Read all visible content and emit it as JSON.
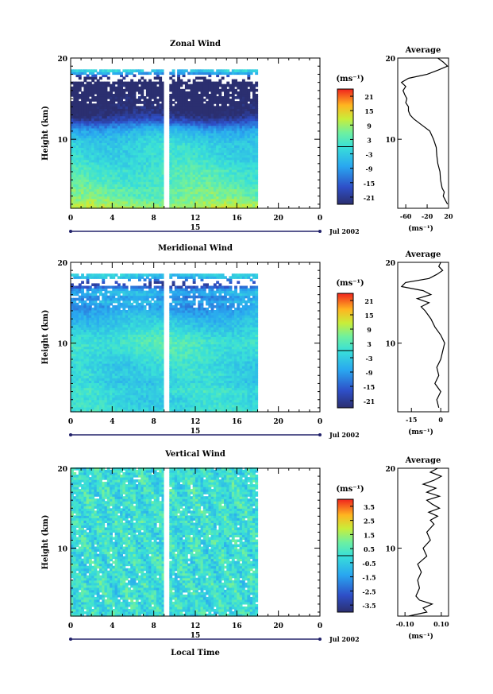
{
  "chart_data": [
    {
      "type": "heatmap",
      "title": "Zonal Wind",
      "ylabel": "Height (km)",
      "xlabel": "",
      "x_ticks": [
        "0",
        "4",
        "8",
        "12",
        "16",
        "20",
        "0"
      ],
      "y_ticks": [
        "10",
        "20"
      ],
      "xlim": [
        0,
        24
      ],
      "ylim": [
        1.5,
        20
      ],
      "day_label": "15",
      "date_label": "Jul 2002",
      "colorbar_unit": "(ms⁻¹)",
      "colorbar_ticks": [
        "21",
        "15",
        "9",
        "3",
        "-3",
        "-9",
        "-15",
        "-21"
      ],
      "colorbar_range": [
        -24,
        24
      ],
      "data_coverage_hours": [
        0,
        17.8
      ],
      "data_gap_hour": 9.1,
      "average_profile": {
        "title": "Average",
        "xlabel": "(ms⁻¹)",
        "x_ticks": [
          "-60",
          "-20",
          "20"
        ],
        "xlim": [
          -75,
          20
        ],
        "height": [
          2,
          2.5,
          3,
          3.5,
          4,
          5,
          6,
          7,
          8,
          9,
          10,
          11,
          11.5,
          12,
          12.5,
          13,
          13.5,
          14,
          14.5,
          15,
          15.5,
          16,
          16.5,
          17,
          17.5,
          18,
          18.5,
          19,
          19.5,
          20
        ],
        "values": [
          18,
          14,
          10,
          12,
          8,
          5,
          4,
          0,
          -2,
          -3,
          -8,
          -15,
          -25,
          -35,
          -45,
          -52,
          -55,
          -55,
          -60,
          -58,
          -62,
          -65,
          -60,
          -68,
          -55,
          -20,
          0,
          18,
          10,
          0
        ]
      }
    },
    {
      "type": "heatmap",
      "title": "Meridional Wind",
      "ylabel": "Height (km)",
      "xlabel": "",
      "x_ticks": [
        "0",
        "4",
        "8",
        "12",
        "16",
        "20",
        "0"
      ],
      "y_ticks": [
        "10",
        "20"
      ],
      "xlim": [
        0,
        24
      ],
      "ylim": [
        1.5,
        20
      ],
      "day_label": "15",
      "date_label": "Jul 2002",
      "colorbar_unit": "(ms⁻¹)",
      "colorbar_ticks": [
        "21",
        "15",
        "9",
        "3",
        "-3",
        "-9",
        "-15",
        "-21"
      ],
      "colorbar_range": [
        -24,
        24
      ],
      "data_coverage_hours": [
        0,
        17.8
      ],
      "data_gap_hour": 9.1,
      "average_profile": {
        "title": "Average",
        "xlabel": "(ms⁻¹)",
        "x_ticks": [
          "-15",
          "0"
        ],
        "xlim": [
          -22,
          4
        ],
        "height": [
          2,
          3,
          4,
          5,
          6,
          7,
          8,
          9,
          10,
          11,
          12,
          13,
          14,
          14.5,
          15,
          15.5,
          16,
          16.5,
          17,
          17.5,
          18,
          18.5,
          19,
          19.5,
          20
        ],
        "values": [
          -1,
          -2,
          0,
          -3,
          -1,
          -2,
          0,
          1,
          2,
          0,
          -3,
          -5,
          -8,
          -10,
          -6,
          -12,
          -5,
          -9,
          -20,
          -18,
          -6,
          -2,
          1,
          -1,
          0
        ]
      }
    },
    {
      "type": "heatmap",
      "title": "Vertical Wind",
      "ylabel": "Height (km)",
      "xlabel": "Local Time",
      "x_ticks": [
        "0",
        "4",
        "8",
        "12",
        "16",
        "20",
        "0"
      ],
      "y_ticks": [
        "10",
        "20"
      ],
      "xlim": [
        0,
        24
      ],
      "ylim": [
        1.5,
        20
      ],
      "day_label": "15",
      "date_label": "Jul 2002",
      "colorbar_unit": "(ms⁻¹)",
      "colorbar_ticks": [
        "3.5",
        "2.5",
        "1.5",
        "0.5",
        "-0.5",
        "-1.5",
        "-2.5",
        "-3.5"
      ],
      "colorbar_range": [
        -4,
        4
      ],
      "data_coverage_hours": [
        0,
        17.8
      ],
      "data_gap_hour": 9.1,
      "average_profile": {
        "title": "Average",
        "xlabel": "(ms⁻¹)",
        "x_ticks": [
          "-0.10",
          "0.10"
        ],
        "xlim": [
          -0.14,
          0.14
        ],
        "height": [
          1.5,
          2,
          2.5,
          3,
          3.5,
          4,
          5,
          6,
          7,
          8,
          9,
          9.5,
          10,
          11,
          12,
          13,
          13.5,
          14,
          14.5,
          15,
          15.5,
          16,
          16.5,
          17,
          17.5,
          18,
          18.5,
          19,
          19.5,
          20
        ],
        "values": [
          -0.08,
          0.02,
          0.0,
          0.05,
          -0.02,
          -0.04,
          -0.02,
          -0.03,
          -0.01,
          -0.03,
          0.02,
          0.01,
          0.0,
          0.04,
          0.02,
          0.06,
          0.04,
          0.08,
          0.03,
          0.09,
          0.05,
          0.02,
          0.09,
          0.02,
          0.07,
          0.0,
          0.06,
          0.1,
          0.04,
          0.08
        ]
      }
    }
  ]
}
